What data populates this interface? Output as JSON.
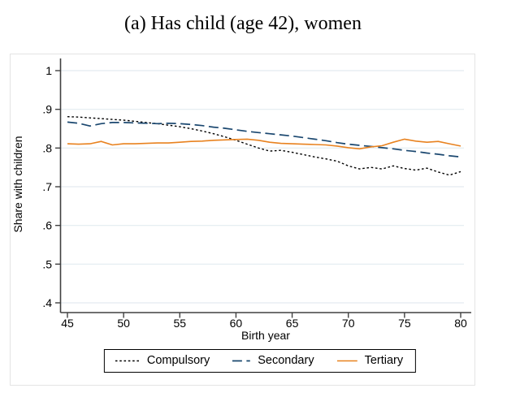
{
  "title": "(a) Has child (age 42), women",
  "chart_data": {
    "type": "line",
    "title": "(a) Has child (age 42), women",
    "xlabel": "Birth year",
    "ylabel": "Share with children",
    "xlim": [
      45,
      80
    ],
    "ylim": [
      0.4,
      1
    ],
    "grid": "horizontal",
    "legend_position": "bottom",
    "x_ticks": [
      45,
      50,
      55,
      60,
      65,
      70,
      75,
      80
    ],
    "y_ticks": [
      {
        "value": 0.4,
        "label": ".4"
      },
      {
        "value": 0.5,
        "label": ".5"
      },
      {
        "value": 0.6,
        "label": ".6"
      },
      {
        "value": 0.7,
        "label": ".7"
      },
      {
        "value": 0.8,
        "label": ".8"
      },
      {
        "value": 0.9,
        "label": ".9"
      },
      {
        "value": 1.0,
        "label": "1"
      }
    ],
    "x": [
      45,
      46,
      47,
      48,
      49,
      50,
      51,
      52,
      53,
      54,
      55,
      56,
      57,
      58,
      59,
      60,
      61,
      62,
      63,
      64,
      65,
      66,
      67,
      68,
      69,
      70,
      71,
      72,
      73,
      74,
      75,
      76,
      77,
      78,
      79,
      80
    ],
    "series": [
      {
        "name": "Compulsory",
        "color": "#000000",
        "line_style": "dotted",
        "values": [
          0.881,
          0.88,
          0.878,
          0.876,
          0.874,
          0.872,
          0.869,
          0.866,
          0.863,
          0.859,
          0.855,
          0.85,
          0.844,
          0.837,
          0.829,
          0.82,
          0.81,
          0.8,
          0.792,
          0.794,
          0.789,
          0.783,
          0.777,
          0.772,
          0.766,
          0.754,
          0.746,
          0.75,
          0.746,
          0.754,
          0.747,
          0.743,
          0.748,
          0.738,
          0.73,
          0.739
        ]
      },
      {
        "name": "Secondary",
        "color": "#1a476f",
        "line_style": "long-dash",
        "values": [
          0.867,
          0.864,
          0.857,
          0.863,
          0.866,
          0.866,
          0.865,
          0.864,
          0.863,
          0.864,
          0.863,
          0.861,
          0.858,
          0.854,
          0.851,
          0.847,
          0.843,
          0.84,
          0.837,
          0.834,
          0.831,
          0.827,
          0.823,
          0.819,
          0.814,
          0.81,
          0.807,
          0.804,
          0.801,
          0.798,
          0.794,
          0.791,
          0.787,
          0.784,
          0.78,
          0.777
        ]
      },
      {
        "name": "Tertiary",
        "color": "#e8821f",
        "line_style": "solid",
        "values": [
          0.811,
          0.81,
          0.811,
          0.817,
          0.808,
          0.811,
          0.811,
          0.812,
          0.813,
          0.813,
          0.815,
          0.817,
          0.818,
          0.82,
          0.821,
          0.822,
          0.823,
          0.82,
          0.815,
          0.812,
          0.811,
          0.81,
          0.809,
          0.808,
          0.805,
          0.801,
          0.798,
          0.803,
          0.806,
          0.815,
          0.823,
          0.818,
          0.815,
          0.817,
          0.811,
          0.805
        ]
      }
    ],
    "colors": {
      "grid": "#e3ebf0",
      "axis": "#404040",
      "tick_text": "#000000",
      "outer_border": "#e4e4e4"
    }
  }
}
